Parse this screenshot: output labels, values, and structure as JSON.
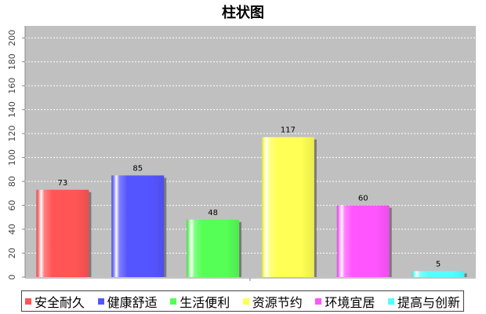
{
  "chart_data": {
    "type": "bar",
    "title": "柱状图",
    "xlabel": "",
    "ylabel": "",
    "categories": [
      "安全耐久",
      "健康舒适",
      "生活便利",
      "资源节约",
      "环境宜居",
      "提高与创新"
    ],
    "values": [
      73,
      85,
      48,
      117,
      60,
      5
    ],
    "colors": [
      "#ff5555",
      "#5555ff",
      "#55ff55",
      "#ffff55",
      "#ff55ff",
      "#55ffff"
    ],
    "ylim": [
      0,
      210
    ],
    "yticks": [
      0,
      20,
      40,
      60,
      80,
      100,
      120,
      140,
      160,
      180,
      200
    ],
    "ytick_labels": [
      "0",
      "20",
      "40",
      "60",
      "80",
      "100",
      "120",
      "140",
      "160",
      "180",
      "200"
    ],
    "grid": true,
    "plot_background": "#c0c0c0",
    "gridline_color": "#ffffff",
    "legend_placement": "bottom"
  }
}
